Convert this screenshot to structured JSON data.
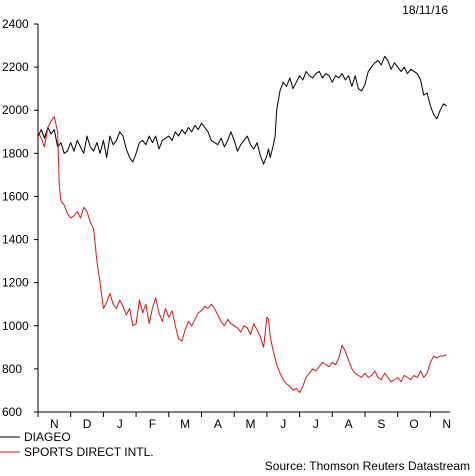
{
  "header": {
    "date": "18/11/16"
  },
  "source_text": "Source: Thomson Reuters Datastream",
  "colors": {
    "diageo": "#000000",
    "sports_direct": "#cc1a1a",
    "axis": "#000000"
  },
  "chart_data": {
    "type": "line",
    "title": "",
    "xlabel": "",
    "ylabel": "",
    "ylim": [
      600,
      2400
    ],
    "yticks": [
      600,
      800,
      1000,
      1200,
      1400,
      1600,
      1800,
      2000,
      2200,
      2400
    ],
    "xlim": [
      0,
      12.6
    ],
    "xtick_labels": [
      "N",
      "D",
      "J",
      "F",
      "M",
      "A",
      "M",
      "J",
      "J",
      "A",
      "S",
      "O",
      "N"
    ],
    "grid": false,
    "legend_position": "bottom-left",
    "series": [
      {
        "name": "DIAGEO",
        "color": "#000000",
        "points": [
          [
            0.0,
            1880
          ],
          [
            0.1,
            1910
          ],
          [
            0.2,
            1870
          ],
          [
            0.3,
            1920
          ],
          [
            0.4,
            1890
          ],
          [
            0.5,
            1910
          ],
          [
            0.6,
            1830
          ],
          [
            0.7,
            1850
          ],
          [
            0.8,
            1800
          ],
          [
            0.9,
            1810
          ],
          [
            1.0,
            1850
          ],
          [
            1.1,
            1810
          ],
          [
            1.2,
            1860
          ],
          [
            1.3,
            1830
          ],
          [
            1.4,
            1800
          ],
          [
            1.5,
            1880
          ],
          [
            1.6,
            1830
          ],
          [
            1.7,
            1810
          ],
          [
            1.8,
            1850
          ],
          [
            1.9,
            1800
          ],
          [
            2.0,
            1860
          ],
          [
            2.1,
            1780
          ],
          [
            2.2,
            1880
          ],
          [
            2.3,
            1840
          ],
          [
            2.4,
            1860
          ],
          [
            2.5,
            1900
          ],
          [
            2.6,
            1880
          ],
          [
            2.7,
            1820
          ],
          [
            2.8,
            1780
          ],
          [
            2.9,
            1760
          ],
          [
            3.0,
            1800
          ],
          [
            3.1,
            1850
          ],
          [
            3.2,
            1860
          ],
          [
            3.3,
            1840
          ],
          [
            3.4,
            1880
          ],
          [
            3.5,
            1850
          ],
          [
            3.6,
            1880
          ],
          [
            3.7,
            1820
          ],
          [
            3.8,
            1860
          ],
          [
            3.9,
            1870
          ],
          [
            4.0,
            1880
          ],
          [
            4.1,
            1860
          ],
          [
            4.2,
            1900
          ],
          [
            4.3,
            1880
          ],
          [
            4.4,
            1910
          ],
          [
            4.5,
            1890
          ],
          [
            4.6,
            1920
          ],
          [
            4.7,
            1900
          ],
          [
            4.8,
            1930
          ],
          [
            4.9,
            1910
          ],
          [
            5.0,
            1940
          ],
          [
            5.1,
            1920
          ],
          [
            5.2,
            1900
          ],
          [
            5.3,
            1860
          ],
          [
            5.4,
            1850
          ],
          [
            5.5,
            1840
          ],
          [
            5.6,
            1870
          ],
          [
            5.7,
            1830
          ],
          [
            5.8,
            1860
          ],
          [
            5.9,
            1900
          ],
          [
            6.0,
            1860
          ],
          [
            6.1,
            1810
          ],
          [
            6.2,
            1840
          ],
          [
            6.3,
            1860
          ],
          [
            6.4,
            1880
          ],
          [
            6.5,
            1840
          ],
          [
            6.6,
            1820
          ],
          [
            6.7,
            1850
          ],
          [
            6.8,
            1790
          ],
          [
            6.9,
            1750
          ],
          [
            7.0,
            1790
          ],
          [
            7.05,
            1820
          ],
          [
            7.1,
            1780
          ],
          [
            7.2,
            1840
          ],
          [
            7.25,
            1880
          ],
          [
            7.3,
            2000
          ],
          [
            7.4,
            2090
          ],
          [
            7.5,
            2130
          ],
          [
            7.6,
            2110
          ],
          [
            7.7,
            2150
          ],
          [
            7.8,
            2100
          ],
          [
            7.9,
            2130
          ],
          [
            8.0,
            2160
          ],
          [
            8.1,
            2140
          ],
          [
            8.2,
            2180
          ],
          [
            8.3,
            2160
          ],
          [
            8.4,
            2150
          ],
          [
            8.5,
            2170
          ],
          [
            8.6,
            2180
          ],
          [
            8.7,
            2150
          ],
          [
            8.8,
            2170
          ],
          [
            8.9,
            2160
          ],
          [
            9.0,
            2130
          ],
          [
            9.1,
            2160
          ],
          [
            9.2,
            2150
          ],
          [
            9.3,
            2170
          ],
          [
            9.4,
            2140
          ],
          [
            9.5,
            2160
          ],
          [
            9.6,
            2110
          ],
          [
            9.7,
            2160
          ],
          [
            9.8,
            2100
          ],
          [
            9.9,
            2090
          ],
          [
            10.0,
            2120
          ],
          [
            10.1,
            2180
          ],
          [
            10.2,
            2200
          ],
          [
            10.3,
            2220
          ],
          [
            10.4,
            2230
          ],
          [
            10.5,
            2210
          ],
          [
            10.6,
            2250
          ],
          [
            10.7,
            2230
          ],
          [
            10.8,
            2190
          ],
          [
            10.9,
            2220
          ],
          [
            11.0,
            2200
          ],
          [
            11.1,
            2180
          ],
          [
            11.2,
            2200
          ],
          [
            11.3,
            2170
          ],
          [
            11.4,
            2190
          ],
          [
            11.5,
            2180
          ],
          [
            11.6,
            2170
          ],
          [
            11.7,
            2140
          ],
          [
            11.8,
            2070
          ],
          [
            11.9,
            2080
          ],
          [
            12.0,
            2020
          ],
          [
            12.1,
            1980
          ],
          [
            12.2,
            1960
          ],
          [
            12.3,
            2000
          ],
          [
            12.4,
            2030
          ],
          [
            12.5,
            2020
          ]
        ]
      },
      {
        "name": "SPORTS DIRECT INTL.",
        "color": "#cc1a1a",
        "points": [
          [
            0.0,
            1900
          ],
          [
            0.1,
            1870
          ],
          [
            0.2,
            1830
          ],
          [
            0.3,
            1920
          ],
          [
            0.4,
            1950
          ],
          [
            0.5,
            1970
          ],
          [
            0.6,
            1900
          ],
          [
            0.65,
            1650
          ],
          [
            0.7,
            1580
          ],
          [
            0.8,
            1560
          ],
          [
            0.9,
            1520
          ],
          [
            1.0,
            1500
          ],
          [
            1.1,
            1510
          ],
          [
            1.2,
            1530
          ],
          [
            1.3,
            1500
          ],
          [
            1.4,
            1550
          ],
          [
            1.5,
            1530
          ],
          [
            1.6,
            1480
          ],
          [
            1.7,
            1450
          ],
          [
            1.8,
            1300
          ],
          [
            1.9,
            1200
          ],
          [
            2.0,
            1080
          ],
          [
            2.1,
            1110
          ],
          [
            2.2,
            1150
          ],
          [
            2.3,
            1100
          ],
          [
            2.4,
            1080
          ],
          [
            2.5,
            1120
          ],
          [
            2.6,
            1090
          ],
          [
            2.7,
            1050
          ],
          [
            2.8,
            1080
          ],
          [
            2.9,
            1000
          ],
          [
            3.0,
            1010
          ],
          [
            3.1,
            1120
          ],
          [
            3.2,
            1060
          ],
          [
            3.3,
            1100
          ],
          [
            3.4,
            1010
          ],
          [
            3.5,
            1080
          ],
          [
            3.6,
            1130
          ],
          [
            3.7,
            1060
          ],
          [
            3.8,
            1020
          ],
          [
            3.9,
            1080
          ],
          [
            4.0,
            1040
          ],
          [
            4.1,
            1070
          ],
          [
            4.2,
            1000
          ],
          [
            4.3,
            940
          ],
          [
            4.4,
            930
          ],
          [
            4.5,
            980
          ],
          [
            4.6,
            1020
          ],
          [
            4.7,
            1000
          ],
          [
            4.8,
            1030
          ],
          [
            4.9,
            1060
          ],
          [
            5.0,
            1070
          ],
          [
            5.1,
            1090
          ],
          [
            5.2,
            1080
          ],
          [
            5.3,
            1100
          ],
          [
            5.4,
            1080
          ],
          [
            5.5,
            1050
          ],
          [
            5.6,
            1020
          ],
          [
            5.7,
            1000
          ],
          [
            5.8,
            1030
          ],
          [
            5.9,
            1010
          ],
          [
            6.0,
            1000
          ],
          [
            6.1,
            990
          ],
          [
            6.2,
            970
          ],
          [
            6.3,
            1000
          ],
          [
            6.4,
            990
          ],
          [
            6.5,
            960
          ],
          [
            6.6,
            1010
          ],
          [
            6.7,
            980
          ],
          [
            6.8,
            950
          ],
          [
            6.9,
            900
          ],
          [
            7.0,
            1040
          ],
          [
            7.05,
            1030
          ],
          [
            7.1,
            950
          ],
          [
            7.2,
            880
          ],
          [
            7.3,
            820
          ],
          [
            7.4,
            780
          ],
          [
            7.5,
            750
          ],
          [
            7.6,
            730
          ],
          [
            7.7,
            720
          ],
          [
            7.8,
            700
          ],
          [
            7.9,
            710
          ],
          [
            8.0,
            690
          ],
          [
            8.1,
            720
          ],
          [
            8.2,
            760
          ],
          [
            8.3,
            780
          ],
          [
            8.4,
            800
          ],
          [
            8.5,
            790
          ],
          [
            8.6,
            810
          ],
          [
            8.7,
            830
          ],
          [
            8.8,
            820
          ],
          [
            8.9,
            810
          ],
          [
            9.0,
            830
          ],
          [
            9.1,
            820
          ],
          [
            9.2,
            850
          ],
          [
            9.3,
            910
          ],
          [
            9.4,
            880
          ],
          [
            9.5,
            840
          ],
          [
            9.6,
            800
          ],
          [
            9.7,
            780
          ],
          [
            9.8,
            770
          ],
          [
            9.9,
            760
          ],
          [
            10.0,
            780
          ],
          [
            10.1,
            760
          ],
          [
            10.2,
            770
          ],
          [
            10.3,
            790
          ],
          [
            10.4,
            760
          ],
          [
            10.5,
            750
          ],
          [
            10.6,
            780
          ],
          [
            10.7,
            760
          ],
          [
            10.8,
            740
          ],
          [
            10.9,
            750
          ],
          [
            11.0,
            760
          ],
          [
            11.1,
            740
          ],
          [
            11.2,
            770
          ],
          [
            11.3,
            760
          ],
          [
            11.4,
            750
          ],
          [
            11.5,
            770
          ],
          [
            11.6,
            760
          ],
          [
            11.7,
            790
          ],
          [
            11.8,
            760
          ],
          [
            11.9,
            780
          ],
          [
            12.0,
            830
          ],
          [
            12.1,
            860
          ],
          [
            12.2,
            850
          ],
          [
            12.3,
            860
          ],
          [
            12.4,
            860
          ],
          [
            12.5,
            865
          ]
        ]
      }
    ]
  }
}
